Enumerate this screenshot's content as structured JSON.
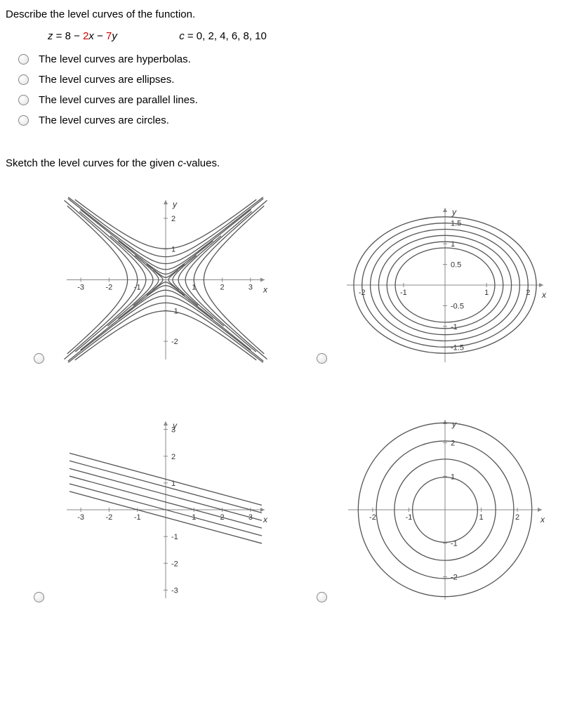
{
  "q1": {
    "prompt": "Describe the level curves of the function."
  },
  "eqn": {
    "z": "z",
    "eq": " = ",
    "const": "8",
    "minus1": " − ",
    "c2": "2",
    "x": "x",
    "minus2": " − ",
    "c7": "7",
    "y": "y",
    "clabel": "c",
    "cvals": " = 0, 2, 4, 6, 8, 10"
  },
  "opts": {
    "a": "The level curves are hyperbolas.",
    "b": "The level curves are ellipses.",
    "c": "The level curves are parallel lines.",
    "d": "The level curves are circles."
  },
  "q2": {
    "pre": "Sketch the level curves for the given ",
    "c": "c",
    "post": "-values."
  },
  "hyper": {
    "type": "hyperbola-family",
    "xrange": [
      -3.4,
      3.4
    ],
    "yrange": [
      -2.5,
      2.5
    ],
    "xticks": [
      -3,
      -2,
      -1,
      1,
      2,
      3
    ],
    "yticks": [
      -2,
      -1,
      1,
      2
    ],
    "slope": 0.75,
    "a_values": [
      0.1,
      0.25,
      0.45,
      0.7,
      1.0,
      1.35
    ],
    "stroke": "#555555"
  },
  "ellipse": {
    "type": "ellipse-family",
    "xrange": [
      -2.3,
      2.3
    ],
    "yrange": [
      -1.8,
      1.8
    ],
    "xticks": [
      -2,
      -1,
      1,
      2
    ],
    "yticks": [
      -1.5,
      -1,
      -0.5,
      0.5,
      1,
      1.5
    ],
    "rx_values": [
      1.2,
      1.4,
      1.6,
      1.8,
      2.0,
      2.2
    ],
    "ry_ratio": 0.75,
    "stroke": "#555555"
  },
  "lines": {
    "type": "parallel-lines",
    "xrange": [
      -3.4,
      3.4
    ],
    "yrange": [
      -3.2,
      3.2
    ],
    "xticks": [
      -3,
      -2,
      -1,
      1,
      2,
      3
    ],
    "yticks": [
      -3,
      -2,
      -1,
      1,
      2,
      3
    ],
    "slope": -0.2857,
    "intercepts": [
      1.143,
      0.857,
      0.571,
      0.286,
      0.0,
      -0.286
    ],
    "stroke": "#555555"
  },
  "circles": {
    "type": "circle-family",
    "xrange": [
      -2.6,
      2.6
    ],
    "yrange": [
      -2.6,
      2.6
    ],
    "xticks": [
      -2,
      -1,
      1,
      2
    ],
    "yticks": [
      -2,
      -1,
      1,
      2
    ],
    "radii": [
      0.9,
      1.4,
      1.9,
      2.4
    ],
    "stroke": "#555555"
  }
}
